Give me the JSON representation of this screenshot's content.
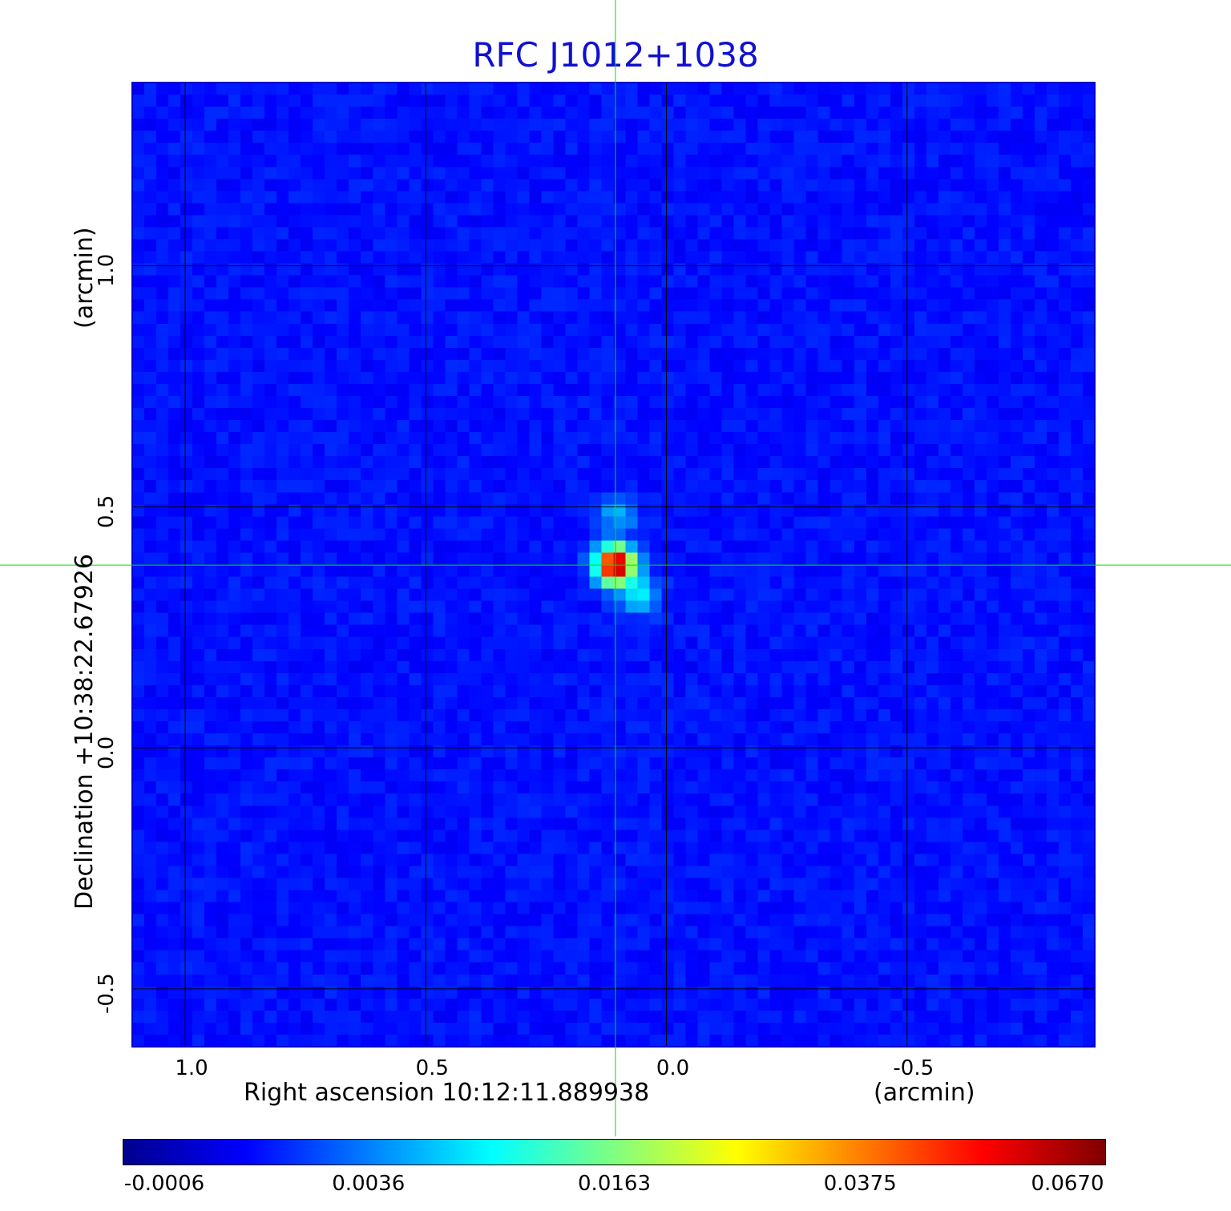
{
  "chart_data": {
    "type": "heatmap",
    "title": "RFC J1012+1038",
    "xlabel": "Right ascension  10:12:11.889938",
    "xunit": "(arcmin)",
    "ylabel": "Declination  +10:38:22.67926",
    "yunit": "(arcmin)",
    "x_axis_reversed": true,
    "xlim": [
      1.11,
      -0.89
    ],
    "ylim": [
      -0.62,
      1.38
    ],
    "x_ticks": [
      {
        "value": 1.0,
        "label": "1.0"
      },
      {
        "value": 0.5,
        "label": "0.5"
      },
      {
        "value": 0.0,
        "label": "0.0"
      },
      {
        "value": -0.5,
        "label": "-0.5"
      }
    ],
    "y_ticks": [
      {
        "value": 1.0,
        "label": "1.0"
      },
      {
        "value": 0.5,
        "label": "0.5"
      },
      {
        "value": 0.0,
        "label": "0.0"
      },
      {
        "value": -0.5,
        "label": "-0.5"
      }
    ],
    "grid": true,
    "crosshair": {
      "x": 0.106,
      "y": 0.379,
      "color": "#00e000"
    },
    "peak": {
      "x": 0.106,
      "y": 0.379,
      "value": 0.067
    },
    "source_components": [
      {
        "x": 0.106,
        "y": 0.379,
        "amplitude": 0.067
      },
      {
        "x": 0.056,
        "y": 0.319,
        "amplitude": 0.008
      },
      {
        "x": 0.101,
        "y": 0.484,
        "amplitude": 0.004
      }
    ],
    "colormap": "jet",
    "colorbar": {
      "orientation": "horizontal",
      "ticks": [
        "-0.0006",
        "0.0036",
        "0.0163",
        "0.0375",
        "0.0670"
      ]
    },
    "colors": {
      "title": "#1010d0",
      "background_field": "#1a3cf0"
    }
  }
}
